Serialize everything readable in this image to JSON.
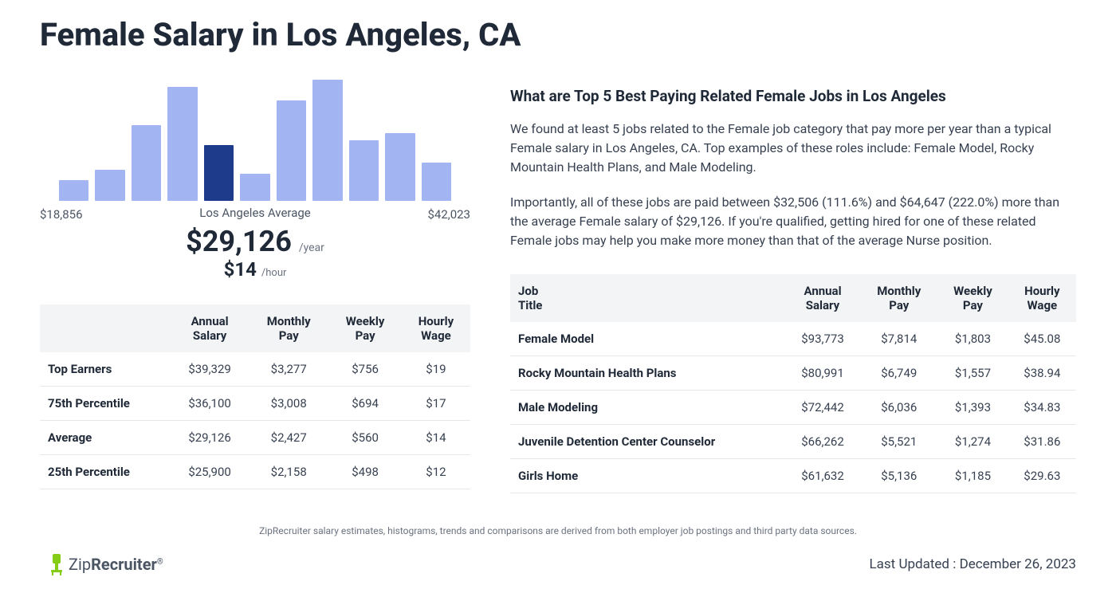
{
  "page_title": "Female Salary in Los Angeles, CA",
  "chart": {
    "type": "bar",
    "bar_color": "#a3b4f2",
    "highlight_color": "#1e3a8a",
    "background_color": "#ffffff",
    "bar_heights_pct": [
      17,
      25,
      61,
      92,
      45,
      22,
      81,
      98,
      49,
      55,
      31
    ],
    "highlight_index": 4,
    "x_min_label": "$18,856",
    "x_max_label": "$42,023",
    "center_label": "Los Angeles Average",
    "annual_value": "$29,126",
    "annual_unit": "/year",
    "hourly_value": "$14",
    "hourly_unit": "/hour"
  },
  "percentile_table": {
    "columns": [
      "",
      "Annual Salary",
      "Monthly Pay",
      "Weekly Pay",
      "Hourly Wage"
    ],
    "rows": [
      [
        "Top Earners",
        "$39,329",
        "$3,277",
        "$756",
        "$19"
      ],
      [
        "75th Percentile",
        "$36,100",
        "$3,008",
        "$694",
        "$17"
      ],
      [
        "Average",
        "$29,126",
        "$2,427",
        "$560",
        "$14"
      ],
      [
        "25th Percentile",
        "$25,900",
        "$2,158",
        "$498",
        "$12"
      ]
    ]
  },
  "right": {
    "heading": "What are Top 5 Best Paying Related Female Jobs in Los Angeles",
    "para1": "We found at least 5 jobs related to the Female job category that pay more per year than a typical Female salary in Los Angeles, CA. Top examples of these roles include: Female Model, Rocky Mountain Health Plans, and Male Modeling.",
    "para2": "Importantly, all of these jobs are paid between $32,506 (111.6%) and $64,647 (222.0%) more than the average Female salary of $29,126. If you're qualified, getting hired for one of these related Female jobs may help you make more money than that of the average Nurse position."
  },
  "jobs_table": {
    "columns": [
      "Job Title",
      "Annual Salary",
      "Monthly Pay",
      "Weekly Pay",
      "Hourly Wage"
    ],
    "rows": [
      [
        "Female Model",
        "$93,773",
        "$7,814",
        "$1,803",
        "$45.08"
      ],
      [
        "Rocky Mountain Health Plans",
        "$80,991",
        "$6,749",
        "$1,557",
        "$38.94"
      ],
      [
        "Male Modeling",
        "$72,442",
        "$6,036",
        "$1,393",
        "$34.83"
      ],
      [
        "Juvenile Detention Center Counselor",
        "$66,262",
        "$5,521",
        "$1,274",
        "$31.86"
      ],
      [
        "Girls Home",
        "$61,632",
        "$5,136",
        "$1,185",
        "$29.63"
      ]
    ]
  },
  "footnote": "ZipRecruiter salary estimates, histograms, trends and comparisons are derived from both employer job postings and third party data sources.",
  "logo": {
    "part1": "Zip",
    "part2": "Recruiter",
    "reg": "®"
  },
  "last_updated": "Last Updated : December 26, 2023"
}
